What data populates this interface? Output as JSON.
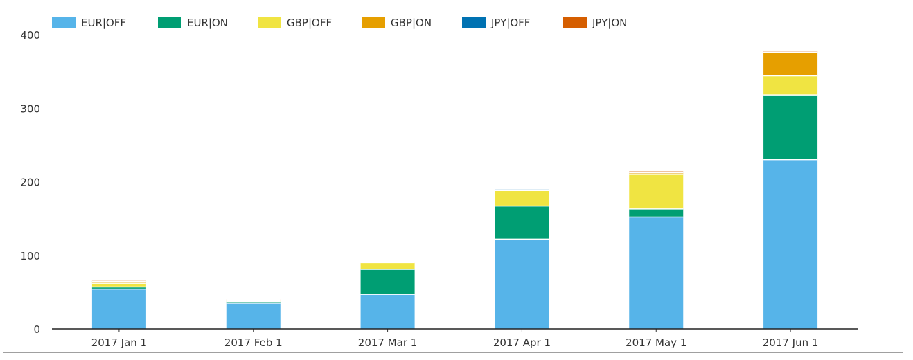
{
  "chart_data": {
    "type": "bar",
    "stacked": true,
    "title": "",
    "xlabel": "",
    "ylabel": "",
    "ylim": [
      0,
      400
    ],
    "yticks": [
      0,
      100,
      200,
      300,
      400
    ],
    "grid": false,
    "legend_position": "top-left",
    "categories": [
      "2017 Jan 1",
      "2017 Feb 1",
      "2017 Mar 1",
      "2017 Apr 1",
      "2017 May 1",
      "2017 Jun 1"
    ],
    "series": [
      {
        "name": "EUR|OFF",
        "color": "#56b4e9",
        "values": [
          54,
          35,
          47,
          122,
          152,
          230
        ]
      },
      {
        "name": "EUR|ON",
        "color": "#009e73",
        "values": [
          3,
          2,
          34,
          45,
          11,
          88
        ]
      },
      {
        "name": "GBP|OFF",
        "color": "#f0e442",
        "values": [
          5,
          1,
          9,
          21,
          47,
          26
        ]
      },
      {
        "name": "GBP|ON",
        "color": "#e69f00",
        "values": [
          2,
          1,
          0.5,
          0.5,
          2,
          32
        ]
      },
      {
        "name": "JPY|OFF",
        "color": "#0072b2",
        "values": [
          0.5,
          0.5,
          0.3,
          1.5,
          0.5,
          0.5
        ]
      },
      {
        "name": "JPY|ON",
        "color": "#d55e00",
        "values": [
          0.8,
          0.3,
          0.3,
          0.5,
          1.5,
          1
        ]
      }
    ]
  }
}
